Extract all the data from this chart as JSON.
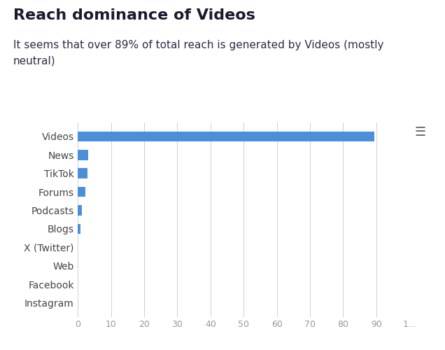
{
  "title": "Reach dominance of Videos",
  "subtitle": "It seems that over 89% of total reach is generated by Videos (mostly\nneutral)",
  "categories": [
    "Instagram",
    "Facebook",
    "Web",
    "X (Twitter)",
    "Blogs",
    "Podcasts",
    "Forums",
    "TikTok",
    "News",
    "Videos"
  ],
  "values": [
    0,
    0,
    0,
    0,
    0.8,
    1.2,
    2.2,
    2.8,
    3.2,
    89.5
  ],
  "bar_color": "#4a90d9",
  "background_color": "#ffffff",
  "xlim": [
    0,
    100
  ],
  "xticks": [
    0,
    10,
    20,
    30,
    40,
    50,
    60,
    70,
    80,
    90,
    100
  ],
  "xtick_labels": [
    "0",
    "10",
    "20",
    "30",
    "40",
    "50",
    "60",
    "70",
    "80",
    "90",
    "1..."
  ],
  "grid_color": "#d0d0d0",
  "title_fontsize": 16,
  "subtitle_fontsize": 11,
  "tick_fontsize": 9,
  "label_fontsize": 10,
  "bar_height": 0.55,
  "menu_icon_color": "#666666",
  "title_color": "#1a1a2e",
  "subtitle_color": "#2c2c4a",
  "ylabel_color": "#444444"
}
